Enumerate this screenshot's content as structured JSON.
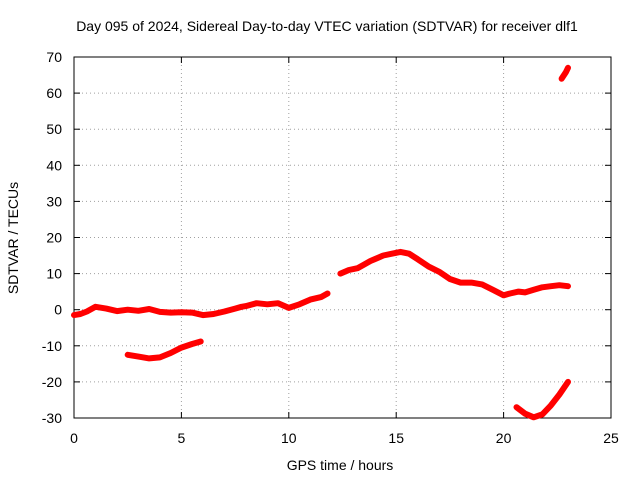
{
  "chart_data": {
    "type": "scatter",
    "title": "Day 095 of 2024, Sidereal Day-to-day VTEC variation (SDTVAR) for receiver dlf1",
    "xlabel": "GPS time / hours",
    "ylabel": "SDTVAR / TECUs",
    "xlim": [
      0,
      25
    ],
    "ylim": [
      -30,
      70
    ],
    "xticks": [
      0,
      5,
      10,
      15,
      20,
      25
    ],
    "yticks": [
      -30,
      -20,
      -10,
      0,
      10,
      20,
      30,
      40,
      50,
      60,
      70
    ],
    "grid": true,
    "color": "#ff0000",
    "series": [
      {
        "name": "track-1",
        "x": [
          0.0,
          0.3,
          0.6,
          1.0,
          1.5,
          2.0,
          2.5,
          3.0,
          3.5,
          4.0,
          4.5,
          5.0,
          5.5,
          6.0,
          6.5,
          7.0,
          7.5,
          7.8,
          8.0,
          8.5,
          9.0,
          9.5,
          10.0,
          10.5,
          11.0,
          11.5,
          11.8
        ],
        "y": [
          -1.5,
          -1.2,
          -0.5,
          0.8,
          0.3,
          -0.4,
          0.0,
          -0.3,
          0.2,
          -0.6,
          -0.8,
          -0.7,
          -0.8,
          -1.5,
          -1.2,
          -0.5,
          0.3,
          0.8,
          1.0,
          1.8,
          1.5,
          1.8,
          0.5,
          1.5,
          2.8,
          3.5,
          4.5
        ]
      },
      {
        "name": "track-2",
        "x": [
          2.5,
          3.0,
          3.5,
          4.0,
          4.5,
          5.0,
          5.5,
          5.9
        ],
        "y": [
          -12.5,
          -13.0,
          -13.5,
          -13.2,
          -12.0,
          -10.5,
          -9.5,
          -8.8
        ]
      },
      {
        "name": "track-3",
        "x": [
          12.4,
          12.8,
          13.2,
          13.5,
          13.8,
          14.0,
          14.4,
          14.8,
          15.2,
          15.6,
          16.0,
          16.5,
          17.0,
          17.5,
          18.0,
          18.5,
          19.0,
          19.5,
          20.0,
          20.3,
          20.7,
          21.0,
          21.4,
          21.8,
          22.2,
          22.6,
          23.0
        ],
        "y": [
          10.0,
          11.0,
          11.5,
          12.5,
          13.5,
          14.0,
          15.0,
          15.5,
          16.0,
          15.5,
          14.0,
          12.0,
          10.5,
          8.5,
          7.5,
          7.5,
          7.0,
          5.5,
          4.0,
          4.5,
          5.0,
          4.8,
          5.5,
          6.2,
          6.5,
          6.8,
          6.5
        ]
      },
      {
        "name": "track-4",
        "x": [
          20.6,
          21.0,
          21.4,
          21.8,
          22.2,
          22.6,
          23.0
        ],
        "y": [
          -27.0,
          -28.8,
          -29.8,
          -29.0,
          -26.5,
          -23.5,
          -20.0
        ]
      },
      {
        "name": "track-5",
        "x": [
          22.7,
          22.9,
          23.0
        ],
        "y": [
          64.0,
          65.8,
          67.0
        ]
      }
    ]
  }
}
